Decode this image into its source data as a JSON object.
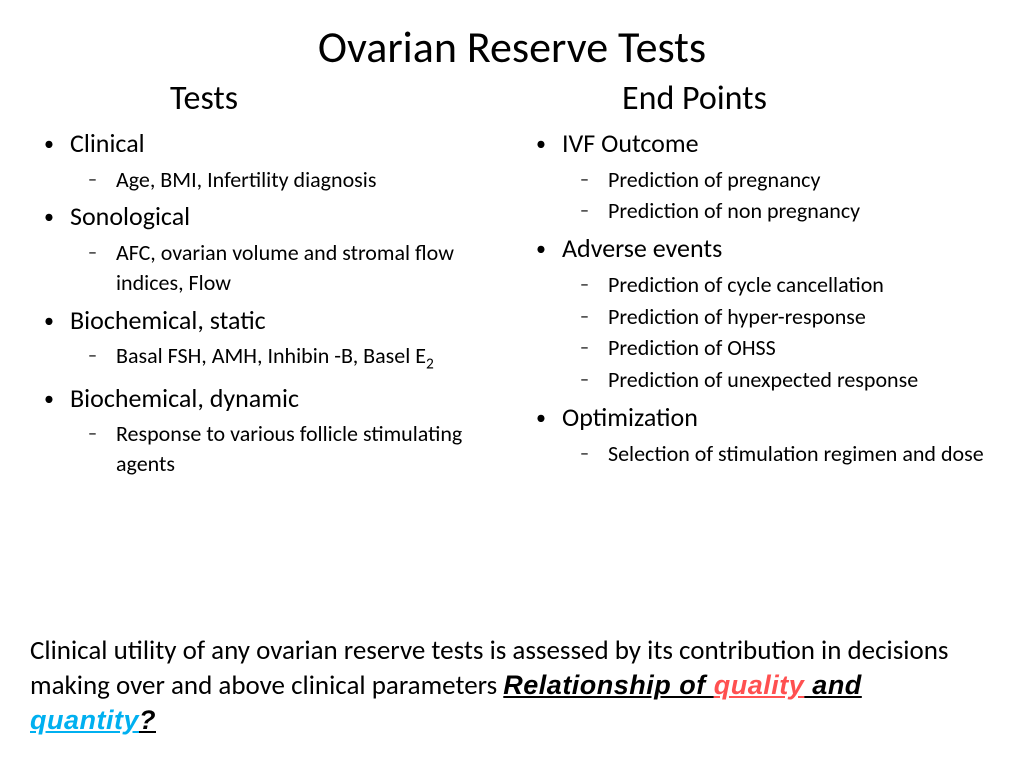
{
  "title": "Ovarian Reserve Tests",
  "colors": {
    "text": "#000000",
    "bg": "#ffffff",
    "quality": "#ff5050",
    "quantity": "#00b0f0"
  },
  "fonts": {
    "body": "Calibri",
    "emphasis": "Impact",
    "title_size": 44,
    "subtitle_size": 34,
    "l1_size": 26,
    "l2_size": 22,
    "footer_size": 27
  },
  "left": {
    "title": "Tests",
    "items": [
      {
        "label": "Clinical",
        "sub": [
          "Age, BMI, Infertility diagnosis"
        ]
      },
      {
        "label": "Sonological",
        "sub": [
          "AFC, ovarian volume and stromal flow indices, Flow"
        ]
      },
      {
        "label": "Biochemical, static",
        "sub": [
          "Basal FSH, AMH, Inhibin -B, Basel E",
          "2"
        ]
      },
      {
        "label": "Biochemical, dynamic",
        "sub": [
          "Response to  various follicle stimulating agents"
        ]
      }
    ]
  },
  "right": {
    "title": "End Points",
    "items": [
      {
        "label": "IVF Outcome",
        "sub": [
          "Prediction of pregnancy",
          "Prediction of non pregnancy"
        ]
      },
      {
        "label": "Adverse events",
        "sub": [
          "Prediction of cycle cancellation",
          "Prediction of hyper-response",
          "Prediction of OHSS",
          "Prediction of unexpected response"
        ]
      },
      {
        "label": "Optimization",
        "sub": [
          "Selection of stimulation regimen and dose"
        ]
      }
    ]
  },
  "footer": {
    "plain": "Clinical utility of any ovarian reserve tests is assessed by its contribution in decisions making  over and above clinical parameters  ",
    "emph1": "Relationship of ",
    "quality": "quality",
    "emph2": " and ",
    "quantity": "quantity",
    "qmark": "?"
  }
}
